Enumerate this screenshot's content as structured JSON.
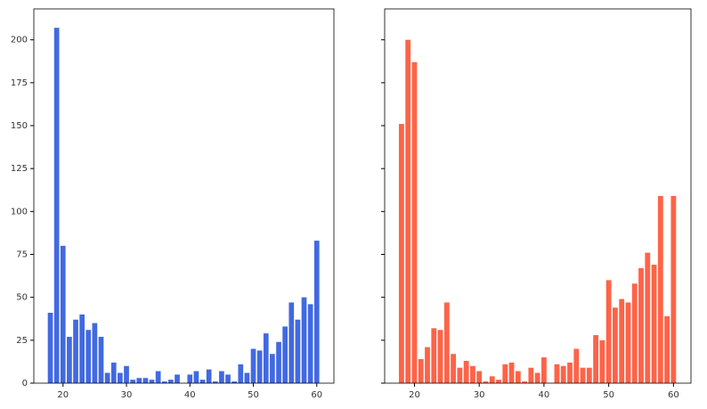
{
  "chart_data": [
    {
      "type": "bar",
      "color": "#4169e1",
      "x": [
        18,
        19,
        20,
        21,
        22,
        23,
        24,
        25,
        26,
        27,
        28,
        29,
        30,
        31,
        32,
        33,
        34,
        35,
        36,
        37,
        38,
        39,
        40,
        41,
        42,
        43,
        44,
        45,
        46,
        47,
        48,
        49,
        50,
        51,
        52,
        53,
        54,
        55,
        56,
        57,
        58,
        59,
        60
      ],
      "values": [
        41,
        207,
        80,
        27,
        37,
        40,
        31,
        35,
        27,
        6,
        12,
        6,
        10,
        2,
        3,
        3,
        2,
        7,
        1,
        2,
        5,
        0,
        5,
        7,
        2,
        8,
        1,
        7,
        5,
        1,
        11,
        6,
        20,
        19,
        29,
        17,
        24,
        33,
        47,
        37,
        50,
        46,
        83
      ],
      "xlim": [
        15.4,
        62.7
      ],
      "xticks": [
        20,
        30,
        40,
        50,
        60
      ],
      "ylim": [
        0,
        218
      ],
      "yticks": [
        0,
        25,
        50,
        75,
        100,
        125,
        150,
        175,
        200
      ]
    },
    {
      "type": "bar",
      "color": "#ff6347",
      "x": [
        18,
        19,
        20,
        21,
        22,
        23,
        24,
        25,
        26,
        27,
        28,
        29,
        30,
        31,
        32,
        33,
        34,
        35,
        36,
        37,
        38,
        39,
        40,
        41,
        42,
        43,
        44,
        45,
        46,
        47,
        48,
        49,
        50,
        51,
        52,
        53,
        54,
        55,
        56,
        57,
        58,
        59,
        60
      ],
      "values": [
        151,
        200,
        187,
        14,
        21,
        32,
        31,
        47,
        17,
        9,
        13,
        10,
        7,
        1,
        4,
        2,
        11,
        12,
        7,
        1,
        9,
        6,
        15,
        0,
        11,
        10,
        12,
        20,
        9,
        9,
        28,
        25,
        60,
        44,
        49,
        47,
        58,
        67,
        76,
        69,
        109,
        39,
        109
      ],
      "xlim": [
        15.4,
        62.7
      ],
      "xticks": [
        20,
        30,
        40,
        50,
        60
      ],
      "ylim": [
        0,
        218
      ],
      "yticks": [
        0,
        25,
        50,
        75,
        100,
        125,
        150,
        175,
        200
      ]
    }
  ]
}
